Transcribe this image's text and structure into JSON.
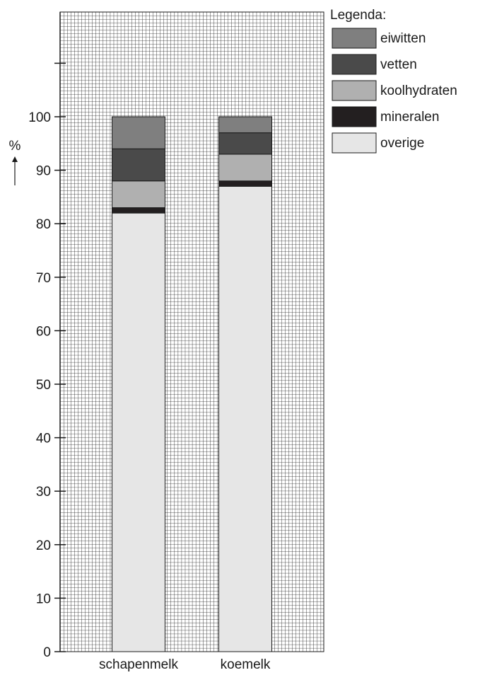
{
  "chart_data": {
    "type": "bar",
    "stacked": true,
    "title": "",
    "xlabel": "",
    "ylabel": "%",
    "ylim": [
      0,
      100
    ],
    "yticks": [
      "0",
      "10",
      "20",
      "30",
      "40",
      "50",
      "60",
      "70",
      "80",
      "90",
      "100"
    ],
    "grid": true,
    "legend_title": "Legenda:",
    "legend_position": "top-right",
    "categories": [
      "schapenmelk",
      "koemelk"
    ],
    "series": [
      {
        "name": "overige",
        "color": "#e6e6e6",
        "values": [
          82,
          87
        ]
      },
      {
        "name": "mineralen",
        "color": "#231f20",
        "values": [
          1,
          1
        ]
      },
      {
        "name": "koolhydraten",
        "color": "#b0b0b0",
        "values": [
          5,
          5
        ]
      },
      {
        "name": "vetten",
        "color": "#4a4a4a",
        "values": [
          6,
          4
        ]
      },
      {
        "name": "eiwitten",
        "color": "#7f7f7f",
        "values": [
          6,
          3
        ]
      }
    ],
    "legend_order": [
      "eiwitten",
      "vetten",
      "koolhydraten",
      "mineralen",
      "overige"
    ]
  }
}
